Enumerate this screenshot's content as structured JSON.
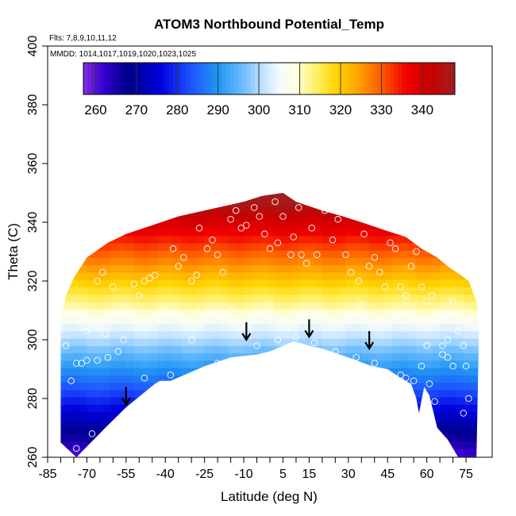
{
  "chart_data": {
    "type": "heatmap",
    "title": "ATOM3 Northbound Potential_Temp",
    "subtitle_flights": "Flts: 7,8,9,10,11,12",
    "subtitle_dates": "MMDD: 1014,1017,1019,1020,1023,1025",
    "xlabel": "Latitude (deg N)",
    "ylabel": "Theta (C)",
    "xlim": [
      -85,
      85
    ],
    "ylim": [
      260,
      400
    ],
    "x_ticks": [
      -85,
      -70,
      -55,
      -40,
      -25,
      -10,
      5,
      15,
      30,
      45,
      60,
      75
    ],
    "y_ticks": [
      260,
      280,
      300,
      320,
      340,
      360,
      380,
      400
    ],
    "colorbar": {
      "range": [
        257,
        348
      ],
      "ticks": [
        260,
        270,
        280,
        290,
        300,
        310,
        320,
        330,
        340
      ],
      "stops": [
        {
          "v": 257,
          "c": "#8a2be2"
        },
        {
          "v": 262,
          "c": "#3300cc"
        },
        {
          "v": 268,
          "c": "#00008b"
        },
        {
          "v": 276,
          "c": "#0000dd"
        },
        {
          "v": 283,
          "c": "#1e50ff"
        },
        {
          "v": 290,
          "c": "#2196f3"
        },
        {
          "v": 296,
          "c": "#6bbcff"
        },
        {
          "v": 301,
          "c": "#c2e2ff"
        },
        {
          "v": 305,
          "c": "#f4faff"
        },
        {
          "v": 309,
          "c": "#ffffe0"
        },
        {
          "v": 314,
          "c": "#fff066"
        },
        {
          "v": 319,
          "c": "#ffd400"
        },
        {
          "v": 324,
          "c": "#ffa500"
        },
        {
          "v": 330,
          "c": "#ff5a00"
        },
        {
          "v": 336,
          "c": "#f20000"
        },
        {
          "v": 342,
          "c": "#c80000"
        },
        {
          "v": 348,
          "c": "#a01e1e"
        }
      ]
    },
    "domain_bottom": [
      [
        -80,
        265
      ],
      [
        -74,
        260
      ],
      [
        -63,
        270
      ],
      [
        -55,
        277
      ],
      [
        -44,
        285
      ],
      [
        -42,
        286
      ],
      [
        -38,
        286
      ],
      [
        -25,
        291
      ],
      [
        -15,
        294
      ],
      [
        -10,
        294.5
      ],
      [
        -5,
        295
      ],
      [
        0,
        296
      ],
      [
        9,
        299.5
      ],
      [
        15,
        298
      ],
      [
        20,
        297
      ],
      [
        30,
        294
      ],
      [
        39,
        291
      ],
      [
        45,
        290
      ],
      [
        50,
        287
      ],
      [
        54,
        285
      ],
      [
        56,
        280
      ],
      [
        57,
        275
      ],
      [
        59,
        284
      ],
      [
        61,
        281
      ],
      [
        64,
        270
      ],
      [
        68,
        266
      ],
      [
        72,
        260
      ],
      [
        79,
        260
      ]
    ],
    "domain_top": [
      [
        -80,
        306
      ],
      [
        -78,
        315
      ],
      [
        -75,
        321
      ],
      [
        -70,
        328
      ],
      [
        -62,
        333
      ],
      [
        -55,
        336
      ],
      [
        -45,
        339
      ],
      [
        -35,
        342
      ],
      [
        -20,
        345
      ],
      [
        -10,
        347
      ],
      [
        -3,
        349
      ],
      [
        5,
        350
      ],
      [
        10,
        347
      ],
      [
        20,
        344
      ],
      [
        28,
        342
      ],
      [
        35,
        340
      ],
      [
        45,
        337
      ],
      [
        52,
        335
      ],
      [
        58,
        331
      ],
      [
        64,
        328
      ],
      [
        68,
        325
      ],
      [
        73,
        322
      ],
      [
        76,
        320
      ],
      [
        79,
        313
      ],
      [
        80,
        306
      ]
    ],
    "arrows": [
      {
        "lat": -55,
        "theta": 278
      },
      {
        "lat": -9,
        "theta": 300
      },
      {
        "lat": 15,
        "theta": 301
      },
      {
        "lat": 38,
        "theta": 297
      }
    ],
    "observations": [
      [
        -78,
        298
      ],
      [
        -76,
        286
      ],
      [
        -74,
        292
      ],
      [
        -72,
        292
      ],
      [
        -70,
        293
      ],
      [
        -72,
        306
      ],
      [
        -70,
        303
      ],
      [
        -66,
        320
      ],
      [
        -64,
        323
      ],
      [
        -60,
        318
      ],
      [
        -63,
        302
      ],
      [
        -66,
        293
      ],
      [
        -58,
        296
      ],
      [
        -54,
        310
      ],
      [
        -52,
        319
      ],
      [
        -50,
        315
      ],
      [
        -48,
        320
      ],
      [
        -46,
        321
      ],
      [
        -44,
        322
      ],
      [
        -42,
        307
      ],
      [
        -40,
        310
      ],
      [
        -37,
        331
      ],
      [
        -35,
        325
      ],
      [
        -33,
        328
      ],
      [
        -30,
        320
      ],
      [
        -28,
        322
      ],
      [
        -27,
        338
      ],
      [
        -24,
        331
      ],
      [
        -22,
        334
      ],
      [
        -20,
        329
      ],
      [
        -18,
        323
      ],
      [
        -15,
        341
      ],
      [
        -13,
        344
      ],
      [
        -11,
        338
      ],
      [
        -9,
        339
      ],
      [
        -6,
        345
      ],
      [
        -4,
        342
      ],
      [
        -2,
        336
      ],
      [
        0,
        331
      ],
      [
        2,
        347
      ],
      [
        3,
        333
      ],
      [
        5,
        342
      ],
      [
        8,
        329
      ],
      [
        9,
        335
      ],
      [
        11,
        345
      ],
      [
        12,
        329
      ],
      [
        14,
        326
      ],
      [
        16,
        338
      ],
      [
        18,
        329
      ],
      [
        21,
        344
      ],
      [
        24,
        334
      ],
      [
        26,
        341
      ],
      [
        29,
        329
      ],
      [
        31,
        323
      ],
      [
        34,
        320
      ],
      [
        36,
        336
      ],
      [
        38,
        325
      ],
      [
        40,
        328
      ],
      [
        42,
        323
      ],
      [
        44,
        318
      ],
      [
        46,
        333
      ],
      [
        48,
        331
      ],
      [
        50,
        318
      ],
      [
        52,
        315
      ],
      [
        54,
        325
      ],
      [
        56,
        330
      ],
      [
        58,
        318
      ],
      [
        60,
        313
      ],
      [
        62,
        315
      ],
      [
        64,
        307
      ],
      [
        66,
        298
      ],
      [
        68,
        294
      ],
      [
        70,
        313
      ],
      [
        72,
        303
      ],
      [
        74,
        298
      ],
      [
        75,
        291
      ],
      [
        76,
        280
      ],
      [
        74,
        275
      ],
      [
        -48,
        287
      ],
      [
        -38,
        288
      ],
      [
        -20,
        292
      ],
      [
        -5,
        298
      ],
      [
        3,
        300
      ],
      [
        10,
        301
      ],
      [
        17,
        299
      ],
      [
        25,
        296
      ],
      [
        33,
        294
      ],
      [
        40,
        292
      ],
      [
        50,
        288
      ],
      [
        52,
        287
      ],
      [
        55,
        286
      ],
      [
        58,
        291
      ],
      [
        60,
        298
      ],
      [
        61,
        285
      ],
      [
        63,
        279
      ],
      [
        66,
        295
      ],
      [
        70,
        291
      ],
      [
        -62,
        294
      ],
      [
        -56,
        300
      ],
      [
        -30,
        300
      ],
      [
        -15,
        310
      ],
      [
        0,
        312
      ],
      [
        20,
        309
      ],
      [
        35,
        312
      ],
      [
        52,
        305
      ],
      [
        60,
        307
      ],
      [
        68,
        300
      ],
      [
        -68,
        268
      ],
      [
        -74,
        263
      ]
    ]
  }
}
